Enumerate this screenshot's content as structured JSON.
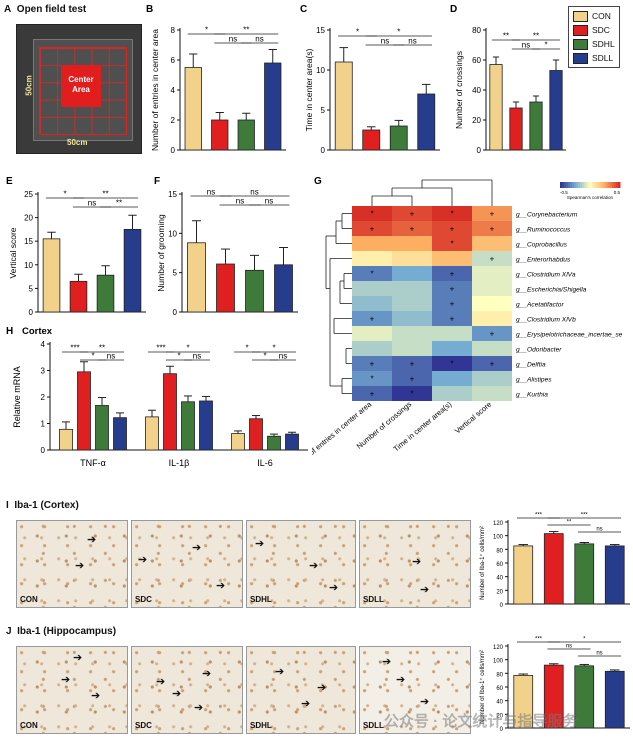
{
  "colors": {
    "CON": "#f2d28a",
    "SDC": "#e02020",
    "SDHL": "#3e7a3a",
    "SDLL": "#263c8c"
  },
  "legend": {
    "items": [
      {
        "group": "CON",
        "color": "#f2d28a"
      },
      {
        "group": "SDC",
        "color": "#e02020"
      },
      {
        "group": "SDHL",
        "color": "#3e7a3a"
      },
      {
        "group": "SDLL",
        "color": "#263c8c"
      }
    ]
  },
  "panel_a": {
    "letter": "A",
    "title": "Open field test",
    "center_label_1": "Center",
    "center_label_2": "Area",
    "dim_vertical": "50cm",
    "dim_horizontal": "50cm"
  },
  "panel_i": {
    "letter": "I",
    "title": "Iba-1 (Cortex)",
    "images": [
      "CON",
      "SDC",
      "SDHL",
      "SDLL"
    ]
  },
  "panel_j": {
    "letter": "J",
    "title": "Iba-1 (Hippocampus)",
    "images": [
      "CON",
      "SDC",
      "SDHL",
      "SDLL"
    ]
  },
  "watermark": "公众号 · 论文统计与指导服务",
  "chart_data": [
    {
      "panel": "B",
      "type": "bar",
      "categories": [
        "CON",
        "SDC",
        "SDHL",
        "SDLL"
      ],
      "values": [
        5.5,
        2.0,
        2.0,
        5.8
      ],
      "errors": [
        0.9,
        0.5,
        0.45,
        0.9
      ],
      "ylabel": "Number of entries in center area",
      "ylim": [
        0,
        8
      ],
      "yticks": [
        0,
        2,
        4,
        6,
        8
      ],
      "sig": [
        {
          "from": 0,
          "to": 1,
          "label": "*",
          "level": 0
        },
        {
          "from": 1,
          "to": 2,
          "label": "ns",
          "level": 1
        },
        {
          "from": 2,
          "to": 3,
          "label": "ns",
          "level": 1
        },
        {
          "from": 1,
          "to": 3,
          "label": "**",
          "level": 0
        }
      ]
    },
    {
      "panel": "C",
      "type": "bar",
      "categories": [
        "CON",
        "SDC",
        "SDHL",
        "SDLL"
      ],
      "values": [
        11.0,
        2.5,
        3.0,
        7.0
      ],
      "errors": [
        1.8,
        0.4,
        0.7,
        1.2
      ],
      "ylabel": "Time in center area(s)",
      "ylim": [
        0,
        15
      ],
      "yticks": [
        0,
        5,
        10,
        15
      ],
      "sig": [
        {
          "from": 0,
          "to": 1,
          "label": "*",
          "level": 0
        },
        {
          "from": 1,
          "to": 2,
          "label": "ns",
          "level": 1
        },
        {
          "from": 2,
          "to": 3,
          "label": "ns",
          "level": 1
        },
        {
          "from": 1,
          "to": 3,
          "label": "*",
          "level": 0
        }
      ]
    },
    {
      "panel": "D",
      "type": "bar",
      "categories": [
        "CON",
        "SDC",
        "SDHL",
        "SDLL"
      ],
      "values": [
        57,
        28,
        32,
        53
      ],
      "errors": [
        5,
        4,
        4,
        7
      ],
      "ylabel": "Number of crossings",
      "ylim": [
        0,
        80
      ],
      "yticks": [
        0,
        20,
        40,
        60,
        80
      ],
      "sig": [
        {
          "from": 0,
          "to": 1,
          "label": "**",
          "level": 0
        },
        {
          "from": 1,
          "to": 2,
          "label": "ns",
          "level": 1
        },
        {
          "from": 2,
          "to": 3,
          "label": "*",
          "level": 1
        },
        {
          "from": 1,
          "to": 3,
          "label": "**",
          "level": 0
        }
      ]
    },
    {
      "panel": "E",
      "type": "bar",
      "categories": [
        "CON",
        "SDC",
        "SDHL",
        "SDLL"
      ],
      "values": [
        15.5,
        6.5,
        7.8,
        17.5
      ],
      "errors": [
        1.4,
        1.5,
        2.0,
        3.0
      ],
      "ylabel": "Vertical score",
      "ylim": [
        0,
        25
      ],
      "yticks": [
        0,
        5,
        10,
        15,
        20,
        25
      ],
      "sig": [
        {
          "from": 0,
          "to": 1,
          "label": "*",
          "level": 0
        },
        {
          "from": 1,
          "to": 2,
          "label": "ns",
          "level": 1
        },
        {
          "from": 2,
          "to": 3,
          "label": "**",
          "level": 1
        },
        {
          "from": 1,
          "to": 3,
          "label": "**",
          "level": 0
        }
      ]
    },
    {
      "panel": "F",
      "type": "bar",
      "categories": [
        "CON",
        "SDC",
        "SDHL",
        "SDLL"
      ],
      "values": [
        8.8,
        6.1,
        5.3,
        6.0
      ],
      "errors": [
        2.8,
        1.9,
        1.9,
        2.2
      ],
      "ylabel": "Number of grooming",
      "ylim": [
        0,
        15
      ],
      "yticks": [
        0,
        5,
        10,
        15
      ],
      "sig": [
        {
          "from": 0,
          "to": 1,
          "label": "ns",
          "level": 0
        },
        {
          "from": 1,
          "to": 2,
          "label": "ns",
          "level": 1
        },
        {
          "from": 2,
          "to": 3,
          "label": "ns",
          "level": 1
        },
        {
          "from": 1,
          "to": 3,
          "label": "ns",
          "level": 0
        }
      ]
    },
    {
      "panel": "H",
      "title": "Cortex",
      "type": "grouped-bar",
      "groups": [
        "TNF-α",
        "IL-1β",
        "IL-6"
      ],
      "series": [
        {
          "name": "CON",
          "values": [
            0.78,
            1.25,
            0.62
          ],
          "errors": [
            0.28,
            0.25,
            0.1
          ]
        },
        {
          "name": "SDC",
          "values": [
            2.95,
            2.88,
            1.18
          ],
          "errors": [
            0.38,
            0.28,
            0.12
          ]
        },
        {
          "name": "SDHL",
          "values": [
            1.68,
            1.82,
            0.52
          ],
          "errors": [
            0.3,
            0.22,
            0.08
          ]
        },
        {
          "name": "SDLL",
          "values": [
            1.22,
            1.85,
            0.6
          ],
          "errors": [
            0.18,
            0.17,
            0.07
          ]
        }
      ],
      "ylabel": "Relative mRNA",
      "ylim": [
        0,
        4
      ],
      "yticks": [
        0,
        1,
        2,
        3,
        4
      ],
      "sig": [
        {
          "group": 0,
          "from": 0,
          "to": 1,
          "label": "***",
          "level": 0
        },
        {
          "group": 0,
          "from": 1,
          "to": 2,
          "label": "*",
          "level": 1
        },
        {
          "group": 0,
          "from": 2,
          "to": 3,
          "label": "ns",
          "level": 1
        },
        {
          "group": 0,
          "from": 1,
          "to": 3,
          "label": "**",
          "level": 0
        },
        {
          "group": 1,
          "from": 0,
          "to": 1,
          "label": "***",
          "level": 0
        },
        {
          "group": 1,
          "from": 1,
          "to": 2,
          "label": "*",
          "level": 1
        },
        {
          "group": 1,
          "from": 2,
          "to": 3,
          "label": "ns",
          "level": 1
        },
        {
          "group": 1,
          "from": 1,
          "to": 3,
          "label": "*",
          "level": 0
        },
        {
          "group": 2,
          "from": 0,
          "to": 1,
          "label": "*",
          "level": 0
        },
        {
          "group": 2,
          "from": 1,
          "to": 2,
          "label": "*",
          "level": 1
        },
        {
          "group": 2,
          "from": 2,
          "to": 3,
          "label": "ns",
          "level": 1
        },
        {
          "group": 2,
          "from": 1,
          "to": 3,
          "label": "*",
          "level": 0
        }
      ]
    },
    {
      "panel": "G",
      "type": "heatmap",
      "colorbar_label": "Spearman's correlation",
      "colorbar_range": [
        -0.5,
        0.5
      ],
      "columns": [
        "Number of entries in center area",
        "Number of crossings",
        "Time in center area(s)",
        "Vertical score"
      ],
      "rows": [
        "g__Corynebacterium",
        "g__Ruminococcus",
        "g__Coprobacillus",
        "g__Enterorhabdus",
        "g__Clostridium XlVa",
        "g__Escherichia/Shigella",
        "g__Acetatifactor",
        "g__Clostridium XlVb",
        "g__Erysipelotrichaceae_incertae_se",
        "g__Odoribacter",
        "g__Delftia",
        "g__Alistipes",
        "g__Kurthia"
      ],
      "values": [
        [
          0.5,
          0.45,
          0.55,
          0.3
        ],
        [
          0.45,
          0.4,
          0.45,
          0.35
        ],
        [
          0.25,
          0.25,
          0.45,
          0.2
        ],
        [
          0.05,
          0.1,
          0.2,
          -0.1
        ],
        [
          -0.35,
          -0.25,
          -0.4,
          -0.05
        ],
        [
          -0.15,
          -0.15,
          -0.35,
          -0.05
        ],
        [
          -0.2,
          -0.15,
          -0.35,
          0.0
        ],
        [
          -0.3,
          -0.2,
          -0.35,
          0.05
        ],
        [
          -0.05,
          -0.1,
          -0.1,
          -0.3
        ],
        [
          -0.15,
          -0.1,
          -0.25,
          -0.1
        ],
        [
          -0.35,
          -0.4,
          -0.5,
          -0.4
        ],
        [
          -0.3,
          -0.4,
          -0.25,
          -0.15
        ],
        [
          -0.4,
          -0.55,
          -0.15,
          -0.1
        ]
      ],
      "marks": [
        [
          "*",
          "+",
          "*",
          "+"
        ],
        [
          "+",
          "+",
          "+",
          "+"
        ],
        [
          "",
          "",
          "*",
          ""
        ],
        [
          "",
          "",
          "",
          "+"
        ],
        [
          "*",
          "",
          "+",
          ""
        ],
        [
          "",
          "",
          "+",
          ""
        ],
        [
          "",
          "",
          "+",
          ""
        ],
        [
          "+",
          "",
          "+",
          ""
        ],
        [
          "",
          "",
          "",
          "+"
        ],
        [
          "",
          "",
          "",
          ""
        ],
        [
          "+",
          "+",
          "*",
          "+"
        ],
        [
          "*",
          "+",
          "",
          ""
        ],
        [
          "+",
          "*",
          "",
          ""
        ]
      ]
    },
    {
      "panel": "I",
      "type": "bar",
      "categories": [
        "CON",
        "SDC",
        "SDHL",
        "SDLL"
      ],
      "values": [
        85,
        103,
        88,
        85
      ],
      "errors": [
        2,
        3,
        2,
        2
      ],
      "ylabel": "Number of Iba-1⁺ cells/mm²",
      "ylim": [
        0,
        120
      ],
      "yticks": [
        0,
        20,
        40,
        60,
        80,
        100,
        120
      ],
      "sig": [
        {
          "from": 0,
          "to": 1,
          "label": "***",
          "level": 0
        },
        {
          "from": 1,
          "to": 2,
          "label": "**",
          "level": 1
        },
        {
          "from": 2,
          "to": 3,
          "label": "ns",
          "level": 2
        },
        {
          "from": 1,
          "to": 3,
          "label": "***",
          "level": 0
        }
      ]
    },
    {
      "panel": "J",
      "type": "bar",
      "categories": [
        "CON",
        "SDC",
        "SDHL",
        "SDLL"
      ],
      "values": [
        77,
        92,
        91,
        83
      ],
      "errors": [
        2,
        2,
        2,
        2
      ],
      "ylabel": "Number of Iba-1⁺ cells/mm²",
      "ylim": [
        0,
        120
      ],
      "yticks": [
        0,
        20,
        40,
        60,
        80,
        100,
        120
      ],
      "sig": [
        {
          "from": 0,
          "to": 1,
          "label": "***",
          "level": 0
        },
        {
          "from": 1,
          "to": 2,
          "label": "ns",
          "level": 1
        },
        {
          "from": 2,
          "to": 3,
          "label": "ns",
          "level": 2
        },
        {
          "from": 1,
          "to": 3,
          "label": "*",
          "level": 0
        }
      ]
    }
  ]
}
